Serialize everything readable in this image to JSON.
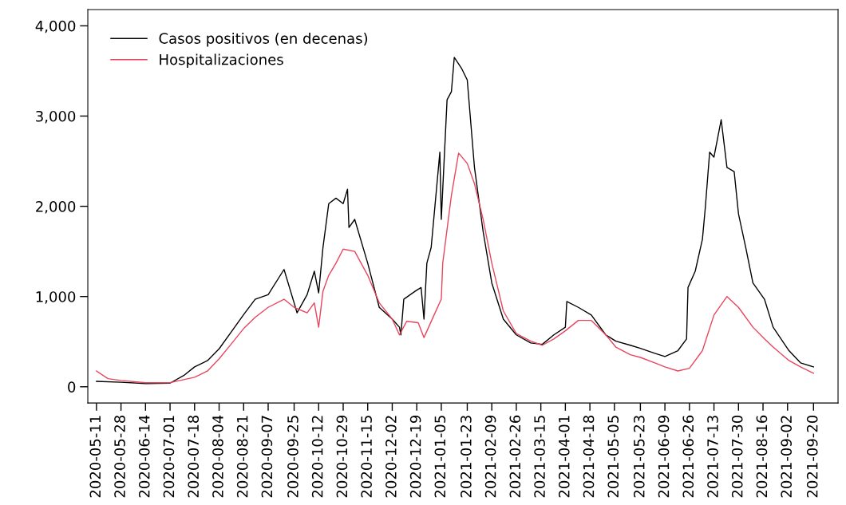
{
  "chart_data": {
    "type": "line",
    "legend": "top left",
    "grid": false,
    "xlim": [
      "2020-05-05",
      "2021-10-07"
    ],
    "ylim": [
      -180,
      4180
    ],
    "yticks": [
      0,
      {
        "value": 1000,
        "label": "1,000"
      },
      {
        "value": 2000,
        "label": "2,000"
      },
      {
        "value": 3000,
        "label": "3,000"
      },
      {
        "value": 4000,
        "label": "4,000"
      }
    ],
    "xticks": [
      "2020-05-11",
      "2020-05-28",
      "2020-06-14",
      "2020-07-01",
      "2020-07-18",
      "2020-08-04",
      "2020-08-21",
      "2020-09-07",
      "2020-09-25",
      "2020-10-12",
      "2020-10-29",
      "2020-11-15",
      "2020-12-02",
      "2020-12-19",
      "2021-01-05",
      "2021-01-23",
      "2021-02-09",
      "2021-02-26",
      "2021-03-15",
      "2021-04-01",
      "2021-04-18",
      "2021-05-05",
      "2021-05-23",
      "2021-06-09",
      "2021-06-26",
      "2021-07-13",
      "2021-07-30",
      "2021-08-16",
      "2021-09-02",
      "2021-09-20"
    ],
    "series": [
      {
        "name": "Casos positivos (en decenas)",
        "color": "#000000",
        "x": [
          "2020-05-11",
          "2020-05-28",
          "2020-06-14",
          "2020-07-01",
          "2020-07-11",
          "2020-07-18",
          "2020-07-27",
          "2020-08-04",
          "2020-08-13",
          "2020-08-21",
          "2020-08-29",
          "2020-09-07",
          "2020-09-18",
          "2020-09-25",
          "2020-09-27",
          "2020-10-04",
          "2020-10-09",
          "2020-10-12",
          "2020-10-15",
          "2020-10-19",
          "2020-10-24",
          "2020-10-29",
          "2020-11-01",
          "2020-11-02",
          "2020-11-06",
          "2020-11-15",
          "2020-11-23",
          "2020-12-02",
          "2020-12-07",
          "2020-12-08",
          "2020-12-10",
          "2020-12-18",
          "2020-12-22",
          "2020-12-24",
          "2020-12-26",
          "2020-12-29",
          "2021-01-04",
          "2021-01-05",
          "2021-01-09",
          "2021-01-12",
          "2021-01-14",
          "2021-01-19",
          "2021-01-23",
          "2021-01-28",
          "2021-02-03",
          "2021-02-09",
          "2021-02-17",
          "2021-02-26",
          "2021-03-08",
          "2021-03-16",
          "2021-03-24",
          "2021-04-01",
          "2021-04-02",
          "2021-04-10",
          "2021-04-19",
          "2021-04-29",
          "2021-05-06",
          "2021-05-16",
          "2021-05-23",
          "2021-06-02",
          "2021-06-09",
          "2021-06-18",
          "2021-06-24",
          "2021-06-25",
          "2021-06-30",
          "2021-07-05",
          "2021-07-07",
          "2021-07-10",
          "2021-07-13",
          "2021-07-18",
          "2021-07-22",
          "2021-07-27",
          "2021-07-30",
          "2021-08-04",
          "2021-08-09",
          "2021-08-17",
          "2021-08-23",
          "2021-09-03",
          "2021-09-11",
          "2021-09-20"
        ],
        "values": [
          60,
          50,
          35,
          40,
          130,
          220,
          290,
          420,
          620,
          800,
          970,
          1020,
          1300,
          930,
          820,
          1020,
          1280,
          1040,
          1545,
          2030,
          2090,
          2030,
          2190,
          1765,
          1855,
          1370,
          880,
          750,
          660,
          575,
          970,
          1060,
          1100,
          750,
          1370,
          1545,
          2600,
          1855,
          3180,
          3270,
          3650,
          3530,
          3400,
          2430,
          1720,
          1150,
          750,
          575,
          485,
          470,
          575,
          660,
          945,
          880,
          795,
          575,
          505,
          460,
          425,
          370,
          335,
          400,
          530,
          1100,
          1280,
          1635,
          1985,
          2600,
          2545,
          2960,
          2430,
          2385,
          1915,
          1545,
          1150,
          970,
          660,
          400,
          265,
          220
        ]
      },
      {
        "name": "Hospitalizaciones",
        "color": "#e8455e",
        "x": [
          "2020-05-11",
          "2020-05-19",
          "2020-05-28",
          "2020-06-14",
          "2020-07-01",
          "2020-07-18",
          "2020-07-27",
          "2020-08-04",
          "2020-08-13",
          "2020-08-21",
          "2020-08-29",
          "2020-09-07",
          "2020-09-18",
          "2020-09-25",
          "2020-10-04",
          "2020-10-09",
          "2020-10-12",
          "2020-10-15",
          "2020-10-19",
          "2020-10-24",
          "2020-10-29",
          "2020-11-06",
          "2020-11-15",
          "2020-11-23",
          "2020-12-02",
          "2020-12-07",
          "2020-12-12",
          "2020-12-20",
          "2020-12-24",
          "2020-12-31",
          "2021-01-05",
          "2021-01-06",
          "2021-01-12",
          "2021-01-17",
          "2021-01-23",
          "2021-01-28",
          "2021-02-03",
          "2021-02-09",
          "2021-02-17",
          "2021-02-26",
          "2021-03-08",
          "2021-03-16",
          "2021-03-24",
          "2021-04-01",
          "2021-04-10",
          "2021-04-19",
          "2021-04-29",
          "2021-05-06",
          "2021-05-16",
          "2021-05-23",
          "2021-06-02",
          "2021-06-09",
          "2021-06-18",
          "2021-06-26",
          "2021-07-05",
          "2021-07-13",
          "2021-07-22",
          "2021-07-30",
          "2021-08-09",
          "2021-08-17",
          "2021-08-23",
          "2021-09-03",
          "2021-09-11",
          "2021-09-20"
        ],
        "values": [
          175,
          90,
          70,
          45,
          45,
          105,
          175,
          310,
          485,
          645,
          770,
          880,
          970,
          880,
          820,
          930,
          660,
          1060,
          1235,
          1370,
          1525,
          1500,
          1235,
          930,
          750,
          575,
          725,
          710,
          545,
          795,
          970,
          1370,
          2120,
          2590,
          2475,
          2250,
          1855,
          1370,
          840,
          590,
          505,
          460,
          530,
          620,
          735,
          735,
          575,
          440,
          355,
          325,
          265,
          220,
          175,
          205,
          400,
          795,
          1000,
          880,
          660,
          530,
          440,
          290,
          220,
          150
        ]
      }
    ]
  }
}
